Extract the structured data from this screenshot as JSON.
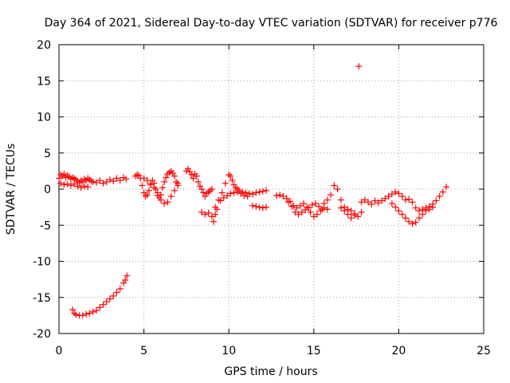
{
  "chart_data": {
    "type": "scatter",
    "title": "Day 364 of 2021, Sidereal Day-to-day VTEC variation (SDTVAR) for receiver p776",
    "xlabel": "GPS time / hours",
    "ylabel": "SDTVAR / TECUs",
    "xlim": [
      0,
      25
    ],
    "ylim": [
      -20,
      20
    ],
    "xticks": [
      0,
      5,
      10,
      15,
      20,
      25
    ],
    "yticks": [
      -20,
      -15,
      -10,
      -5,
      0,
      5,
      10,
      15,
      20
    ],
    "xtick_labels": [
      "0",
      "5",
      "10",
      "15",
      "20",
      "25"
    ],
    "ytick_labels": [
      "-20",
      "-15",
      "-10",
      "-5",
      "0",
      "5",
      "10",
      "15",
      "20"
    ],
    "grid": true,
    "marker": "plus",
    "color": "#ff0000",
    "series": [
      {
        "name": "p776",
        "x": [
          0.0,
          0.1,
          0.2,
          0.3,
          0.4,
          0.5,
          0.6,
          0.7,
          0.8,
          0.9,
          1.0,
          1.1,
          1.2,
          1.3,
          1.4,
          1.5,
          1.6,
          1.7,
          1.8,
          1.9,
          2.0,
          2.2,
          2.4,
          2.6,
          2.8,
          3.0,
          3.2,
          3.4,
          3.6,
          3.8,
          3.95,
          0.1,
          0.3,
          0.5,
          0.7,
          0.9,
          1.1,
          1.3,
          1.5,
          1.7,
          0.8,
          0.9,
          1.0,
          1.2,
          1.4,
          1.6,
          1.8,
          2.0,
          2.2,
          2.4,
          2.6,
          2.8,
          3.0,
          3.2,
          3.4,
          3.6,
          3.8,
          3.9,
          4.0,
          4.5,
          4.6,
          4.7,
          4.8,
          4.9,
          5.0,
          5.1,
          5.2,
          5.3,
          5.4,
          5.5,
          5.6,
          5.7,
          5.8,
          5.9,
          6.0,
          6.1,
          6.2,
          6.3,
          6.4,
          6.5,
          6.6,
          6.7,
          6.8,
          6.9,
          7.0,
          5.0,
          5.2,
          5.4,
          5.6,
          5.8,
          6.0,
          6.2,
          6.4,
          6.6,
          6.8,
          7.0,
          7.5,
          7.6,
          7.7,
          7.8,
          7.9,
          8.0,
          8.1,
          8.2,
          8.3,
          8.4,
          8.5,
          8.6,
          8.7,
          8.8,
          8.9,
          9.0,
          8.4,
          8.6,
          8.8,
          9.0,
          9.1,
          9.2,
          9.3,
          9.2,
          9.4,
          9.6,
          9.8,
          10.0,
          10.1,
          10.2,
          10.3,
          10.4,
          10.5,
          10.6,
          10.8,
          11.0,
          11.2,
          11.4,
          11.6,
          11.8,
          12.0,
          12.2,
          9.5,
          9.7,
          9.9,
          10.1,
          10.3,
          10.5,
          10.7,
          10.9,
          11.1,
          11.4,
          11.6,
          11.8,
          12.0,
          12.2,
          12.8,
          13.0,
          13.2,
          13.4,
          13.6,
          13.8,
          14.0,
          14.2,
          14.4,
          14.6,
          14.8,
          15.0,
          15.2,
          15.4,
          15.6,
          15.8,
          13.5,
          13.7,
          13.9,
          14.1,
          14.3,
          14.5,
          14.7,
          14.9,
          15.1,
          15.3,
          15.5,
          15.6,
          15.8,
          16.0,
          16.2,
          16.4,
          16.6,
          16.8,
          17.0,
          17.2,
          17.4,
          17.6,
          17.8,
          16.6,
          16.8,
          17.0,
          17.2,
          17.4,
          17.65,
          17.8,
          18.0,
          18.2,
          18.4,
          18.6,
          18.8,
          19.0,
          19.2,
          19.4,
          19.6,
          19.8,
          20.0,
          20.2,
          20.4,
          19.6,
          19.8,
          20.0,
          20.2,
          20.4,
          20.6,
          20.8,
          21.0,
          21.2,
          21.4,
          21.6,
          21.8,
          22.0,
          20.6,
          20.8,
          21.0,
          21.2,
          21.4,
          21.6,
          21.8,
          22.0,
          22.2,
          22.4,
          22.6,
          22.8
        ],
        "y": [
          1.5,
          2.0,
          1.8,
          2.1,
          1.6,
          1.9,
          1.7,
          1.4,
          1.6,
          1.5,
          1.3,
          1.1,
          0.9,
          1.2,
          1.0,
          1.4,
          1.2,
          1.5,
          1.3,
          1.1,
          1.0,
          0.9,
          1.2,
          0.8,
          1.0,
          1.3,
          1.1,
          1.5,
          1.2,
          1.6,
          1.4,
          0.8,
          0.6,
          0.7,
          0.5,
          0.7,
          0.4,
          0.2,
          0.4,
          0.3,
          -16.7,
          -17.2,
          -17.4,
          -17.5,
          -17.5,
          -17.3,
          -17.2,
          -17.0,
          -16.8,
          -16.4,
          -16.0,
          -15.6,
          -15.2,
          -14.8,
          -14.3,
          -13.8,
          -13.0,
          -12.6,
          -12.0,
          1.8,
          2.0,
          1.9,
          1.5,
          0.5,
          -0.5,
          -1.0,
          -0.8,
          -0.2,
          0.6,
          1.2,
          0.8,
          0.0,
          -0.9,
          -1.2,
          -0.8,
          0.2,
          1.0,
          1.6,
          2.1,
          2.3,
          2.5,
          2.2,
          1.8,
          1.0,
          0.8,
          1.5,
          1.2,
          0.8,
          0.2,
          -0.5,
          -1.5,
          -2.0,
          -1.8,
          -1.0,
          -0.2,
          0.5,
          2.5,
          2.8,
          2.4,
          2.0,
          1.5,
          2.1,
          1.8,
          1.0,
          0.4,
          0.0,
          -0.5,
          -1.0,
          -0.6,
          -0.4,
          -0.2,
          0.0,
          -3.2,
          -3.5,
          -3.3,
          -3.8,
          -4.5,
          -3.5,
          -2.8,
          -2.5,
          -1.5,
          -0.5,
          0.8,
          2.0,
          1.8,
          1.2,
          0.6,
          0.2,
          0.0,
          -0.2,
          -0.4,
          -0.5,
          -0.6,
          -0.7,
          -0.5,
          -0.4,
          -0.3,
          -0.2,
          -1.6,
          -1.2,
          -0.9,
          -0.6,
          -0.5,
          -0.4,
          -0.6,
          -0.9,
          -1.0,
          -2.3,
          -2.4,
          -2.5,
          -2.6,
          -2.5,
          -0.9,
          -0.8,
          -1.0,
          -1.3,
          -1.7,
          -2.3,
          -2.6,
          -2.3,
          -2.0,
          -2.5,
          -3.2,
          -3.8,
          -3.5,
          -3.0,
          -2.6,
          -2.8,
          -1.8,
          -2.4,
          -3.2,
          -3.5,
          -3.2,
          -2.9,
          -2.6,
          -2.2,
          -2.0,
          -2.4,
          -2.8,
          -2.0,
          -1.5,
          -0.8,
          0.5,
          0.0,
          -1.5,
          -2.5,
          -2.8,
          -3.0,
          -3.4,
          -3.8,
          -3.2,
          -2.6,
          -3.0,
          -3.5,
          -4.0,
          -3.6,
          17.0,
          -1.8,
          -1.5,
          -1.8,
          -2.1,
          -1.6,
          -1.9,
          -1.6,
          -1.3,
          -1.0,
          -0.7,
          -0.4,
          -0.6,
          -1.0,
          -1.5,
          -2.0,
          -2.5,
          -3.0,
          -3.5,
          -4.0,
          -4.5,
          -4.8,
          -4.6,
          -4.0,
          -3.5,
          -3.0,
          -2.8,
          -2.5,
          -1.4,
          -1.8,
          -2.6,
          -3.0,
          -2.8,
          -2.6,
          -2.4,
          -2.1,
          -1.6,
          -1.0,
          -0.4,
          0.3
        ]
      }
    ]
  }
}
